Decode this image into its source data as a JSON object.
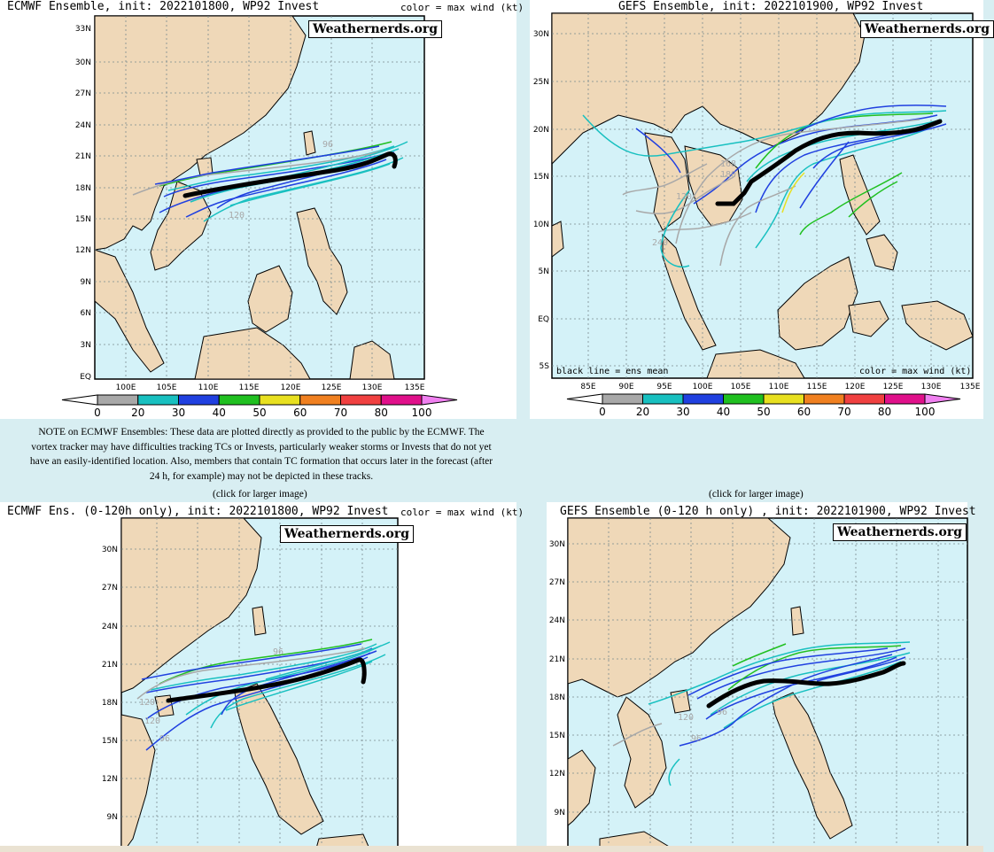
{
  "colors": {
    "ocean": "#d4f2f8",
    "land": "#efd8b8",
    "page_bg": "#d8eef2",
    "grid": "#7a8a8e",
    "mean_track": "#000000",
    "gray": "#a8a8a8",
    "cyan": "#18c0c0",
    "blue": "#2040e0",
    "green": "#20c020",
    "yellow": "#e8e020"
  },
  "color_scale": {
    "ticks": [
      "0",
      "20",
      "30",
      "40",
      "50",
      "60",
      "70",
      "80",
      "100"
    ],
    "colors": [
      "#ffffff",
      "#a8a8a8",
      "#18c0c0",
      "#2040e0",
      "#20c020",
      "#e8e020",
      "#f08020",
      "#f04040",
      "#e0108a",
      "#f080f0"
    ]
  },
  "panels": {
    "p1": {
      "title": "ECMWF Ensemble, init: 2022101800, WP92 Invest",
      "color_key": "color = max wind (kt)",
      "watermark": "Weathernerds.org",
      "lat_labels": [
        "33N",
        "30N",
        "27N",
        "24N",
        "21N",
        "18N",
        "15N",
        "12N",
        "9N",
        "6N",
        "3N",
        "EQ"
      ],
      "lon_labels": [
        "100E",
        "105E",
        "110E",
        "115E",
        "120E",
        "125E",
        "130E",
        "135E"
      ],
      "track_labels": [
        "96",
        "120"
      ]
    },
    "p2": {
      "title": "GEFS Ensemble, init: 2022101900, WP92 Invest",
      "watermark": "Weathernerds.org",
      "lat_labels": [
        "30N",
        "25N",
        "20N",
        "15N",
        "10N",
        "5N",
        "EQ",
        "5S"
      ],
      "lon_labels": [
        "85E",
        "90E",
        "95E",
        "100E",
        "105E",
        "110E",
        "115E",
        "120E",
        "125E",
        "130E",
        "135E"
      ],
      "mean_label": "black line = ens mean",
      "color_key": "color = max wind (kt)",
      "track_labels": [
        "168",
        "180",
        "120",
        "240"
      ]
    },
    "p3": {
      "title": "ECMWF Ens. (0-120h only), init: 2022101800, WP92 Invest",
      "color_key": "color = max wind (kt)",
      "watermark": "Weathernerds.org",
      "lat_labels": [
        "30N",
        "27N",
        "24N",
        "21N",
        "18N",
        "15N",
        "12N",
        "9N"
      ],
      "track_labels": [
        "96",
        "120",
        "120",
        "96"
      ]
    },
    "p4": {
      "title": "GEFS Ensemble (0-120 h only) , init: 2022101900, WP92 Invest",
      "watermark": "Weathernerds.org",
      "lat_labels": [
        "30N",
        "27N",
        "24N",
        "21N",
        "18N",
        "15N",
        "12N",
        "9N"
      ],
      "track_labels": [
        "120",
        "96",
        "96"
      ]
    }
  },
  "note": "NOTE on ECMWF Ensembles: These data are plotted directly as provided to the public by the ECMWF. The vortex tracker may have difficulties tracking TCs or Invests, particularly weaker storms or Invests that do not yet have an easily-identified location. Also, members that contain TC formation that occurs later in the forecast (after 24 h, for example) may not be depicted in these tracks.",
  "click_left": "(click for larger image)",
  "click_right": "(click for larger image)"
}
